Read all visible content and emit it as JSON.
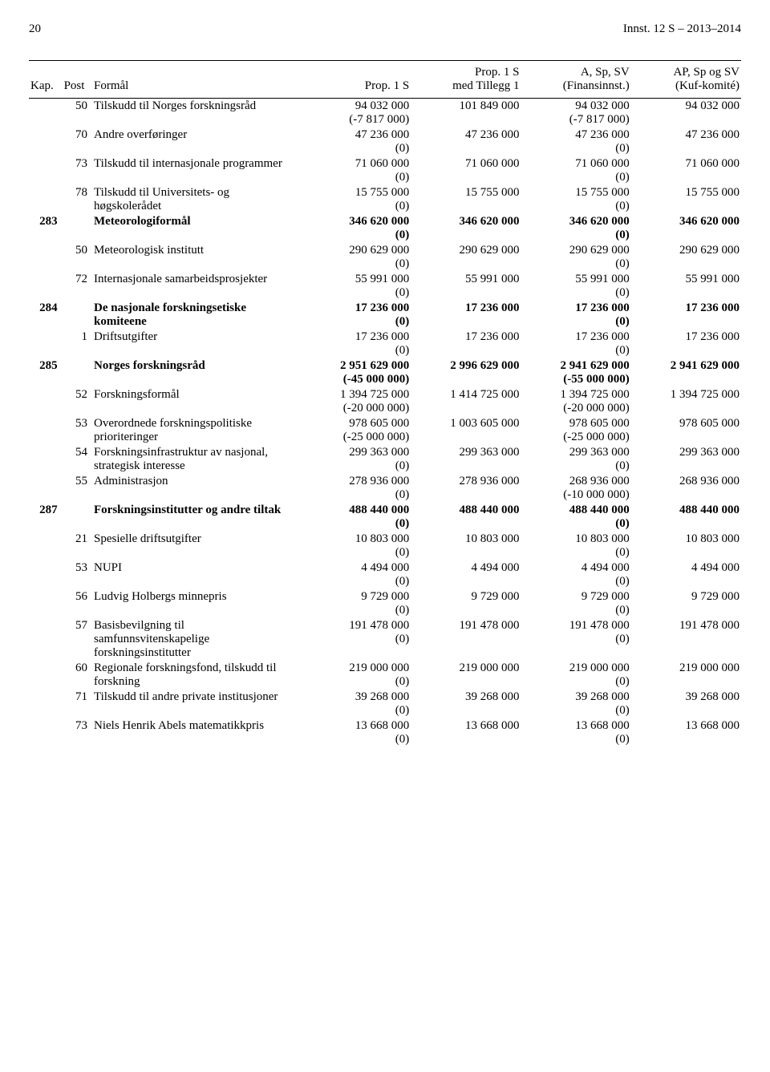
{
  "header": {
    "page_no": "20",
    "doc_ref": "Innst. 12 S – 2013–2014"
  },
  "columns": {
    "kap": "Kap.",
    "post": "Post",
    "formal": "Formål",
    "c1_top": "",
    "c1_bot": "Prop. 1 S",
    "c2_top": "Prop. 1 S",
    "c2_bot": "med Tillegg 1",
    "c3_top": "A, Sp, SV",
    "c3_bot": "(Finansinnst.)",
    "c4_top": "AP, Sp og SV",
    "c4_bot": "(Kuf-komité)"
  },
  "rows": [
    {
      "kap": "",
      "post": "50",
      "formal": "Tilskudd til Norges forskningsråd",
      "bold": false,
      "v1": "94 032 000",
      "s1": "(-7 817 000)",
      "v2": "101 849 000",
      "v3": "94 032 000",
      "s3": "(-7 817 000)",
      "v4": "94 032 000"
    },
    {
      "kap": "",
      "post": "70",
      "formal": "Andre overføringer",
      "bold": false,
      "v1": "47 236 000",
      "s1": "(0)",
      "v2": "47 236 000",
      "v3": "47 236 000",
      "s3": "(0)",
      "v4": "47 236 000"
    },
    {
      "kap": "",
      "post": "73",
      "formal": "Tilskudd til internasjonale programmer",
      "bold": false,
      "v1": "71 060 000",
      "s1": "(0)",
      "v2": "71 060 000",
      "v3": "71 060 000",
      "s3": "(0)",
      "v4": "71 060 000"
    },
    {
      "kap": "",
      "post": "78",
      "formal": "Tilskudd til Universitets- og høgskolerådet",
      "bold": false,
      "v1": "15 755 000",
      "s1": "(0)",
      "v2": "15 755 000",
      "v3": "15 755 000",
      "s3": "(0)",
      "v4": "15 755 000"
    },
    {
      "kap": "283",
      "post": "",
      "formal": "Meteorologiformål",
      "bold": true,
      "v1": "346 620 000",
      "s1": "(0)",
      "v2": "346 620 000",
      "v3": "346 620 000",
      "s3": "(0)",
      "v4": "346 620 000"
    },
    {
      "kap": "",
      "post": "50",
      "formal": "Meteorologisk institutt",
      "bold": false,
      "v1": "290 629 000",
      "s1": "(0)",
      "v2": "290 629 000",
      "v3": "290 629 000",
      "s3": "(0)",
      "v4": "290 629 000"
    },
    {
      "kap": "",
      "post": "72",
      "formal": "Internasjonale samarbeids­prosjekter",
      "bold": false,
      "v1": "55 991 000",
      "s1": "(0)",
      "v2": "55 991 000",
      "v3": "55 991 000",
      "s3": "(0)",
      "v4": "55 991 000"
    },
    {
      "kap": "284",
      "post": "",
      "formal": "De nasjonale forsknings­etiske komiteene",
      "bold": true,
      "v1": "17 236 000",
      "s1": "(0)",
      "v2": "17 236 000",
      "v3": "17 236 000",
      "s3": "(0)",
      "v4": "17 236 000"
    },
    {
      "kap": "",
      "post": "1",
      "formal": "Driftsutgifter",
      "bold": false,
      "v1": "17 236 000",
      "s1": "(0)",
      "v2": "17 236 000",
      "v3": "17 236 000",
      "s3": "(0)",
      "v4": "17 236 000"
    },
    {
      "kap": "285",
      "post": "",
      "formal": "Norges forskningsråd",
      "bold": true,
      "v1": "2 951 629 000",
      "s1": "(-45 000 000)",
      "v2": "2 996 629 000",
      "v3": "2 941 629 000",
      "s3": "(-55 000 000)",
      "v4": "2 941 629 000"
    },
    {
      "kap": "",
      "post": "52",
      "formal": "Forskningsformål",
      "bold": false,
      "v1": "1 394 725 000",
      "s1": "(-20 000 000)",
      "v2": "1 414 725 000",
      "v3": "1 394 725 000",
      "s3": "(-20 000 000)",
      "v4": "1 394 725 000"
    },
    {
      "kap": "",
      "post": "53",
      "formal": "Overordnede forsknings­politiske prioriteringer",
      "bold": false,
      "v1": "978 605 000",
      "s1": "(-25 000 000)",
      "v2": "1 003 605 000",
      "v3": "978 605 000",
      "s3": "(-25 000 000)",
      "v4": "978 605 000"
    },
    {
      "kap": "",
      "post": "54",
      "formal": "Forskningsinfrastruktur av nasjonal, strategisk interesse",
      "bold": false,
      "v1": "299 363 000",
      "s1": "(0)",
      "v2": "299 363 000",
      "v3": "299 363 000",
      "s3": "(0)",
      "v4": "299 363 000"
    },
    {
      "kap": "",
      "post": "55",
      "formal": "Administrasjon",
      "bold": false,
      "v1": "278 936 000",
      "s1": "(0)",
      "v2": "278 936 000",
      "v3": "268 936 000",
      "s3": "(-10 000 000)",
      "v4": "268 936 000"
    },
    {
      "kap": "287",
      "post": "",
      "formal": "Forskningsinstitutter og andre tiltak",
      "bold": true,
      "v1": "488 440 000",
      "s1": "(0)",
      "v2": "488 440 000",
      "v3": "488 440 000",
      "s3": "(0)",
      "v4": "488 440 000"
    },
    {
      "kap": "",
      "post": "21",
      "formal": "Spesielle driftsutgifter",
      "bold": false,
      "v1": "10 803 000",
      "s1": "(0)",
      "v2": "10 803 000",
      "v3": "10 803 000",
      "s3": "(0)",
      "v4": "10 803 000"
    },
    {
      "kap": "",
      "post": "53",
      "formal": "NUPI",
      "bold": false,
      "v1": "4 494 000",
      "s1": "(0)",
      "v2": "4 494 000",
      "v3": "4 494 000",
      "s3": "(0)",
      "v4": "4 494 000"
    },
    {
      "kap": "",
      "post": "56",
      "formal": "Ludvig Holbergs minnepris",
      "bold": false,
      "v1": "9 729 000",
      "s1": "(0)",
      "v2": "9 729 000",
      "v3": "9 729 000",
      "s3": "(0)",
      "v4": "9 729 000"
    },
    {
      "kap": "",
      "post": "57",
      "formal": "Basisbevilgning til samfunnsvitenskapelige forskningsinstitutter",
      "bold": false,
      "v1": "191 478 000",
      "s1": "(0)",
      "v2": "191 478 000",
      "v3": "191 478 000",
      "s3": "(0)",
      "v4": "191 478 000"
    },
    {
      "kap": "",
      "post": "60",
      "formal": "Regionale forskningsfond, tilskudd til forskning",
      "bold": false,
      "v1": "219 000 000",
      "s1": "(0)",
      "v2": "219 000 000",
      "v3": "219 000 000",
      "s3": "(0)",
      "v4": "219 000 000"
    },
    {
      "kap": "",
      "post": "71",
      "formal": "Tilskudd til andre private institusjoner",
      "bold": false,
      "v1": "39 268 000",
      "s1": "(0)",
      "v2": "39 268 000",
      "v3": "39 268 000",
      "s3": "(0)",
      "v4": "39 268 000"
    },
    {
      "kap": "",
      "post": "73",
      "formal": "Niels Henrik Abels matematikkpris",
      "bold": false,
      "v1": "13 668 000",
      "s1": "(0)",
      "v2": "13 668 000",
      "v3": "13 668 000",
      "s3": "(0)",
      "v4": "13 668 000"
    }
  ]
}
